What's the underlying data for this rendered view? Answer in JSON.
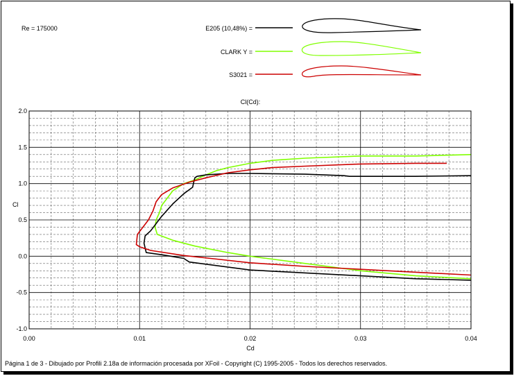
{
  "re_label": "Re = 175000",
  "footer": "Página 1 de 3 - Dibujado por Profili 2.18a de información procesada por XFoil - Copyright (C) 1995-2005 - Todos los derechos reservados.",
  "chart_data": {
    "type": "line",
    "title": "Cl(Cd):",
    "xlabel": "Cd",
    "ylabel": "Cl",
    "xlim": [
      0.0,
      0.04
    ],
    "ylim": [
      -1.0,
      2.0
    ],
    "x_ticks": [
      "0.00",
      "0.01",
      "0.02",
      "0.03",
      "0.04"
    ],
    "y_ticks": [
      "2.0",
      "1.5",
      "1.0",
      "0.5",
      "0.0",
      "-0.5",
      "-1.0"
    ],
    "grid": true,
    "legend_position": "top",
    "series": [
      {
        "name": "E205  (10,48%) =",
        "color": "#000000",
        "points": [
          [
            0.04,
            1.11
          ],
          [
            0.035,
            1.1
          ],
          [
            0.03,
            1.1
          ],
          [
            0.029,
            1.1
          ],
          [
            0.0285,
            1.11
          ],
          [
            0.025,
            1.13
          ],
          [
            0.02,
            1.14
          ],
          [
            0.018,
            1.14
          ],
          [
            0.016,
            1.12
          ],
          [
            0.0152,
            1.1
          ],
          [
            0.015,
            1.08
          ],
          [
            0.0149,
            1.02
          ],
          [
            0.0148,
            0.95
          ],
          [
            0.014,
            0.86
          ],
          [
            0.013,
            0.72
          ],
          [
            0.012,
            0.55
          ],
          [
            0.0115,
            0.45
          ],
          [
            0.011,
            0.35
          ],
          [
            0.0105,
            0.28
          ],
          [
            0.0104,
            0.18
          ],
          [
            0.0106,
            0.05
          ],
          [
            0.012,
            0.02
          ],
          [
            0.014,
            -0.03
          ],
          [
            0.0145,
            -0.08
          ],
          [
            0.02,
            -0.19
          ],
          [
            0.025,
            -0.23
          ],
          [
            0.03,
            -0.27
          ],
          [
            0.035,
            -0.31
          ],
          [
            0.04,
            -0.33
          ]
        ]
      },
      {
        "name": "CLARK Y =",
        "color": "#80ff00",
        "points": [
          [
            0.04,
            1.4
          ],
          [
            0.035,
            1.38
          ],
          [
            0.03,
            1.38
          ],
          [
            0.025,
            1.35
          ],
          [
            0.023,
            1.33
          ],
          [
            0.022,
            1.32
          ],
          [
            0.02,
            1.28
          ],
          [
            0.018,
            1.22
          ],
          [
            0.017,
            1.18
          ],
          [
            0.016,
            1.12
          ],
          [
            0.015,
            1.05
          ],
          [
            0.014,
            1.0
          ],
          [
            0.013,
            0.9
          ],
          [
            0.0125,
            0.8
          ],
          [
            0.012,
            0.7
          ],
          [
            0.0118,
            0.6
          ],
          [
            0.0115,
            0.5
          ],
          [
            0.0114,
            0.4
          ],
          [
            0.0116,
            0.3
          ],
          [
            0.013,
            0.22
          ],
          [
            0.015,
            0.14
          ],
          [
            0.018,
            0.05
          ],
          [
            0.02,
            0.0
          ],
          [
            0.025,
            -0.1
          ],
          [
            0.03,
            -0.2
          ],
          [
            0.035,
            -0.27
          ],
          [
            0.04,
            -0.31
          ]
        ]
      },
      {
        "name": "S3021 =",
        "color": "#cc0000",
        "points": [
          [
            0.0378,
            1.28
          ],
          [
            0.035,
            1.28
          ],
          [
            0.03,
            1.27
          ],
          [
            0.025,
            1.24
          ],
          [
            0.022,
            1.22
          ],
          [
            0.02,
            1.19
          ],
          [
            0.018,
            1.15
          ],
          [
            0.016,
            1.08
          ],
          [
            0.0145,
            1.02
          ],
          [
            0.013,
            0.94
          ],
          [
            0.012,
            0.85
          ],
          [
            0.0115,
            0.75
          ],
          [
            0.0112,
            0.62
          ],
          [
            0.0108,
            0.5
          ],
          [
            0.0103,
            0.4
          ],
          [
            0.0098,
            0.3
          ],
          [
            0.0097,
            0.16
          ],
          [
            0.01,
            0.13
          ],
          [
            0.011,
            0.08
          ],
          [
            0.014,
            0.01
          ],
          [
            0.017,
            -0.04
          ],
          [
            0.02,
            -0.09
          ],
          [
            0.025,
            -0.14
          ],
          [
            0.03,
            -0.18
          ],
          [
            0.035,
            -0.22
          ],
          [
            0.04,
            -0.26
          ]
        ]
      }
    ]
  }
}
